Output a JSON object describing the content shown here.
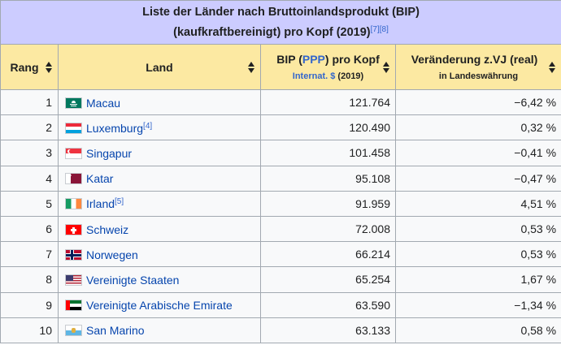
{
  "caption": {
    "line1": "Liste der Länder nach Bruttoinlandsprodukt (BIP)",
    "line2": "(kaufkraftbereinigt) pro Kopf (2019)",
    "refs": "[7][8]"
  },
  "headers": {
    "rank": "Rang",
    "country": "Land",
    "gdp_pre": "BIP (",
    "gdp_link": "PPP",
    "gdp_post": ") pro Kopf",
    "gdp_unit_link": "Internat. $",
    "gdp_unit_rest": " (2019)",
    "change": "Veränderung z.VJ (real)",
    "change_sub": "in Landeswährung"
  },
  "rows": [
    {
      "rank": "1",
      "country": "Macau",
      "ref": "",
      "flag": "macau-flag",
      "gdp": "121.764",
      "change": "−6,42 %"
    },
    {
      "rank": "2",
      "country": "Luxemburg",
      "ref": "[4]",
      "flag": "luxembourg-flag",
      "gdp": "120.490",
      "change": "0,32 %"
    },
    {
      "rank": "3",
      "country": "Singapur",
      "ref": "",
      "flag": "singapore-flag",
      "gdp": "101.458",
      "change": "−0,41 %"
    },
    {
      "rank": "4",
      "country": "Katar",
      "ref": "",
      "flag": "qatar-flag",
      "gdp": "95.108",
      "change": "−0,47 %"
    },
    {
      "rank": "5",
      "country": "Irland",
      "ref": "[5]",
      "flag": "ireland-flag",
      "gdp": "91.959",
      "change": "4,51 %"
    },
    {
      "rank": "6",
      "country": "Schweiz",
      "ref": "",
      "flag": "switzerland-flag",
      "gdp": "72.008",
      "change": "0,53 %"
    },
    {
      "rank": "7",
      "country": "Norwegen",
      "ref": "",
      "flag": "norway-flag",
      "gdp": "66.214",
      "change": "0,53 %"
    },
    {
      "rank": "8",
      "country": "Vereinigte Staaten",
      "ref": "",
      "flag": "usa-flag",
      "gdp": "65.254",
      "change": "1,67 %"
    },
    {
      "rank": "9",
      "country": "Vereinigte Arabische Emirate",
      "ref": "",
      "flag": "uae-flag",
      "gdp": "63.590",
      "change": "−1,34 %"
    },
    {
      "rank": "10",
      "country": "San Marino",
      "ref": "",
      "flag": "san-marino-flag",
      "gdp": "63.133",
      "change": "0,58 %"
    }
  ],
  "colors": {
    "caption_bg": "#ccccff",
    "header_bg": "#fce9a2",
    "link": "#0645ad",
    "border": "#a2a9b1"
  }
}
